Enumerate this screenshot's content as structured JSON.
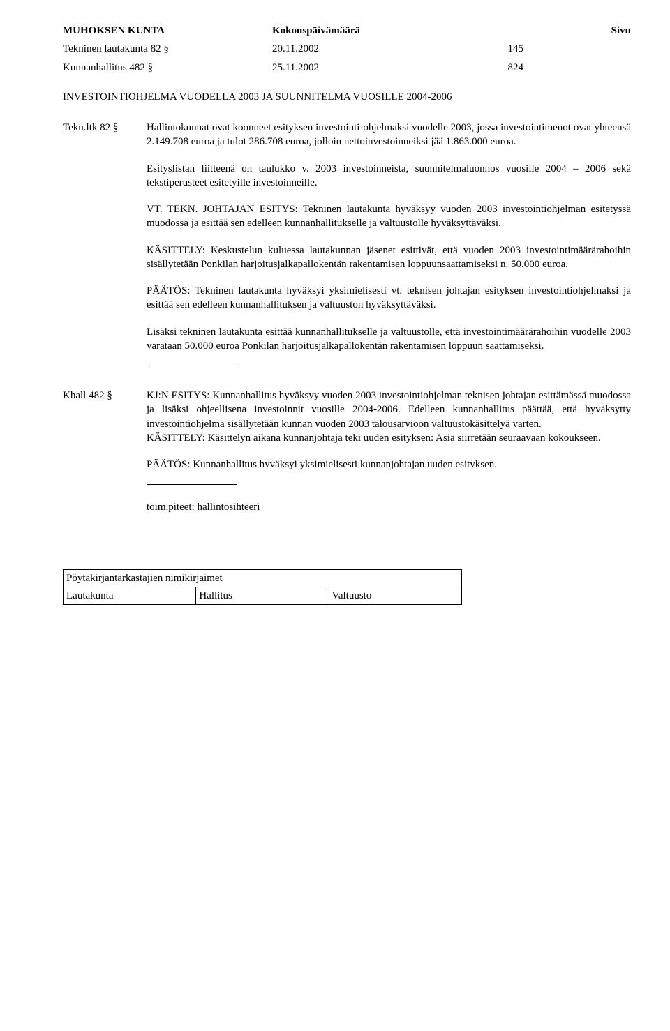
{
  "header": {
    "org": "MUHOKSEN KUNTA",
    "doc": "Kokouspäivämäärä",
    "page_label": "Sivu"
  },
  "meetings": [
    {
      "body": "Tekninen lautakunta  82 §",
      "date": "20.11.2002",
      "page": "145"
    },
    {
      "body": "Kunnanhallitus 482 §",
      "date": "25.11.2002",
      "page": "824"
    }
  ],
  "title": "INVESTOINTIOHJELMA VUODELLA 2003 JA SUUNNITELMA VUOSILLE 2004-2006",
  "tekn": {
    "label": "Tekn.ltk  82 §",
    "paras": [
      "Hallintokunnat ovat koonneet esityksen investointi-ohjelmaksi vuodelle 2003, jossa investointimenot ovat yhteensä 2.149.708 euroa ja  tulot 286.708 euroa, jolloin nettoinvestoinneiksi jää  1.863.000 euroa.",
      "Esityslistan liitteenä on taulukko v. 2003 investoinneista, suunnitelmaluonnos vuosille 2004 – 2006  sekä tekstiperusteet esitetyille investoinneille.",
      "VT. TEKN. JOHTAJAN ESITYS:  Tekninen lautakunta hyväksyy vuoden 2003 investointiohjelman esitetyssä muodossa ja esittää sen edelleen kunnanhallitukselle ja valtuustolle hyväksyttäväksi.",
      "KÄSITTELY:  Keskustelun kuluessa lautakunnan jäsenet esittivät, että vuoden 2003 investointimäärärahoihin sisällytetään Ponkilan harjoitusjalkapallokentän rakentamisen loppuunsaattamiseksi  n. 50.000 euroa.",
      "PÄÄTÖS:  Tekninen lautakunta hyväksyi yksimielisesti vt. teknisen johtajan esityksen investointiohjelmaksi ja esittää sen edelleen kunnanhallituksen ja valtuuston hyväksyttäväksi.",
      "Lisäksi tekninen lautakunta esittää kunnanhallitukselle ja valtuustolle, että investointimäärärahoihin vuodelle 2003 varataan 50.000 euroa Ponkilan harjoitusjalkapallokentän rakentamisen loppuun saattamiseksi."
    ]
  },
  "khall": {
    "label": "Khall 482 §",
    "para1_pre": "KJ:N ESITYS:  Kunnanhallitus hyväksyy vuoden 2003 investointiohjelman teknisen johtajan esittämässä muodossa ja lisäksi ohjeellisena investoinnit vuosille 2004-2006. Edelleen kunnanhallitus päättää, että hyväksytty investointiohjelma sisällytetään kunnan vuoden 2003 talousarvioon valtuustokäsittelyä varten.",
    "para1_mid_plain": "KÄSITTELY: Käsittelyn aikana ",
    "para1_mid_u": "kunnanjohtaja teki uuden esityksen:",
    "para1_mid_post": " Asia siirretään seuraavaan kokoukseen.",
    "para2": "PÄÄTÖS: Kunnanhallitus hyväksyi yksimielisesti kunnanjohtajan uuden esityksen.",
    "toim": "toim.piteet: hallintosihteeri"
  },
  "footer": {
    "top": "Pöytäkirjantarkastajien nimikirjaimet",
    "c1": "Lautakunta",
    "c2": "Hallitus",
    "c3": "Valtuusto"
  }
}
